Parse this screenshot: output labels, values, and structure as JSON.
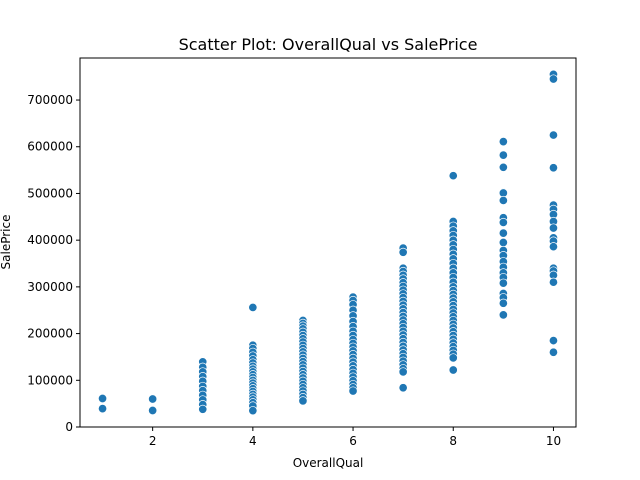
{
  "chart_data": {
    "type": "scatter",
    "title": "Scatter Plot: OverallQual vs SalePrice",
    "xlabel": "OverallQual",
    "ylabel": "SalePrice",
    "xlim": [
      0.55,
      10.45
    ],
    "ylim": [
      0,
      790000
    ],
    "x_ticks": [
      2,
      4,
      6,
      8,
      10
    ],
    "y_ticks": [
      0,
      100000,
      200000,
      300000,
      400000,
      500000,
      600000,
      700000
    ],
    "grid": false,
    "color": "#1f77b4",
    "points": [
      {
        "x": 1,
        "y": 61000
      },
      {
        "x": 1,
        "y": 39300
      },
      {
        "x": 2,
        "y": 60000
      },
      {
        "x": 2,
        "y": 35300
      },
      {
        "x": 3,
        "y": 139600
      },
      {
        "x": 3,
        "y": 128000
      },
      {
        "x": 3,
        "y": 118000
      },
      {
        "x": 3,
        "y": 108000
      },
      {
        "x": 3,
        "y": 98000
      },
      {
        "x": 3,
        "y": 87000
      },
      {
        "x": 3,
        "y": 78000
      },
      {
        "x": 3,
        "y": 68000
      },
      {
        "x": 3,
        "y": 58000
      },
      {
        "x": 3,
        "y": 48000
      },
      {
        "x": 3,
        "y": 37900
      },
      {
        "x": 4,
        "y": 256000
      },
      {
        "x": 4,
        "y": 175000
      },
      {
        "x": 4,
        "y": 168000
      },
      {
        "x": 4,
        "y": 160000
      },
      {
        "x": 4,
        "y": 152000
      },
      {
        "x": 4,
        "y": 144000
      },
      {
        "x": 4,
        "y": 137000
      },
      {
        "x": 4,
        "y": 130000
      },
      {
        "x": 4,
        "y": 124000
      },
      {
        "x": 4,
        "y": 118000
      },
      {
        "x": 4,
        "y": 112000
      },
      {
        "x": 4,
        "y": 106000
      },
      {
        "x": 4,
        "y": 100000
      },
      {
        "x": 4,
        "y": 94000
      },
      {
        "x": 4,
        "y": 88000
      },
      {
        "x": 4,
        "y": 82000
      },
      {
        "x": 4,
        "y": 76000
      },
      {
        "x": 4,
        "y": 70000
      },
      {
        "x": 4,
        "y": 64000
      },
      {
        "x": 4,
        "y": 58000
      },
      {
        "x": 4,
        "y": 52000
      },
      {
        "x": 4,
        "y": 45000
      },
      {
        "x": 4,
        "y": 35000
      },
      {
        "x": 5,
        "y": 228000
      },
      {
        "x": 5,
        "y": 222000
      },
      {
        "x": 5,
        "y": 216000
      },
      {
        "x": 5,
        "y": 210000
      },
      {
        "x": 5,
        "y": 203000
      },
      {
        "x": 5,
        "y": 196000
      },
      {
        "x": 5,
        "y": 189000
      },
      {
        "x": 5,
        "y": 182000
      },
      {
        "x": 5,
        "y": 175000
      },
      {
        "x": 5,
        "y": 168000
      },
      {
        "x": 5,
        "y": 161000
      },
      {
        "x": 5,
        "y": 154000
      },
      {
        "x": 5,
        "y": 147000
      },
      {
        "x": 5,
        "y": 140000
      },
      {
        "x": 5,
        "y": 133000
      },
      {
        "x": 5,
        "y": 126000
      },
      {
        "x": 5,
        "y": 119000
      },
      {
        "x": 5,
        "y": 112000
      },
      {
        "x": 5,
        "y": 105000
      },
      {
        "x": 5,
        "y": 98000
      },
      {
        "x": 5,
        "y": 91000
      },
      {
        "x": 5,
        "y": 84000
      },
      {
        "x": 5,
        "y": 77000
      },
      {
        "x": 5,
        "y": 70000
      },
      {
        "x": 5,
        "y": 63000
      },
      {
        "x": 5,
        "y": 56000
      },
      {
        "x": 6,
        "y": 278000
      },
      {
        "x": 6,
        "y": 271000
      },
      {
        "x": 6,
        "y": 262000
      },
      {
        "x": 6,
        "y": 250000
      },
      {
        "x": 6,
        "y": 238000
      },
      {
        "x": 6,
        "y": 226000
      },
      {
        "x": 6,
        "y": 215000
      },
      {
        "x": 6,
        "y": 205000
      },
      {
        "x": 6,
        "y": 196000
      },
      {
        "x": 6,
        "y": 187000
      },
      {
        "x": 6,
        "y": 179000
      },
      {
        "x": 6,
        "y": 171000
      },
      {
        "x": 6,
        "y": 163000
      },
      {
        "x": 6,
        "y": 155000
      },
      {
        "x": 6,
        "y": 147000
      },
      {
        "x": 6,
        "y": 139000
      },
      {
        "x": 6,
        "y": 131000
      },
      {
        "x": 6,
        "y": 123000
      },
      {
        "x": 6,
        "y": 115000
      },
      {
        "x": 6,
        "y": 107000
      },
      {
        "x": 6,
        "y": 99000
      },
      {
        "x": 6,
        "y": 91000
      },
      {
        "x": 6,
        "y": 84000
      },
      {
        "x": 6,
        "y": 77000
      },
      {
        "x": 7,
        "y": 383000
      },
      {
        "x": 7,
        "y": 374000
      },
      {
        "x": 7,
        "y": 340000
      },
      {
        "x": 7,
        "y": 333000
      },
      {
        "x": 7,
        "y": 325000
      },
      {
        "x": 7,
        "y": 317000
      },
      {
        "x": 7,
        "y": 309000
      },
      {
        "x": 7,
        "y": 301000
      },
      {
        "x": 7,
        "y": 293000
      },
      {
        "x": 7,
        "y": 285000
      },
      {
        "x": 7,
        "y": 277000
      },
      {
        "x": 7,
        "y": 269000
      },
      {
        "x": 7,
        "y": 261000
      },
      {
        "x": 7,
        "y": 253000
      },
      {
        "x": 7,
        "y": 245000
      },
      {
        "x": 7,
        "y": 237000
      },
      {
        "x": 7,
        "y": 229000
      },
      {
        "x": 7,
        "y": 221000
      },
      {
        "x": 7,
        "y": 213000
      },
      {
        "x": 7,
        "y": 205000
      },
      {
        "x": 7,
        "y": 197000
      },
      {
        "x": 7,
        "y": 189000
      },
      {
        "x": 7,
        "y": 181000
      },
      {
        "x": 7,
        "y": 173000
      },
      {
        "x": 7,
        "y": 165000
      },
      {
        "x": 7,
        "y": 157000
      },
      {
        "x": 7,
        "y": 149000
      },
      {
        "x": 7,
        "y": 141000
      },
      {
        "x": 7,
        "y": 133000
      },
      {
        "x": 7,
        "y": 125000
      },
      {
        "x": 7,
        "y": 118000
      },
      {
        "x": 7,
        "y": 84000
      },
      {
        "x": 8,
        "y": 538000
      },
      {
        "x": 8,
        "y": 440000
      },
      {
        "x": 8,
        "y": 430000
      },
      {
        "x": 8,
        "y": 420000
      },
      {
        "x": 8,
        "y": 410000
      },
      {
        "x": 8,
        "y": 400000
      },
      {
        "x": 8,
        "y": 390000
      },
      {
        "x": 8,
        "y": 380000
      },
      {
        "x": 8,
        "y": 370000
      },
      {
        "x": 8,
        "y": 360000
      },
      {
        "x": 8,
        "y": 350000
      },
      {
        "x": 8,
        "y": 340000
      },
      {
        "x": 8,
        "y": 330000
      },
      {
        "x": 8,
        "y": 320000
      },
      {
        "x": 8,
        "y": 310000
      },
      {
        "x": 8,
        "y": 300000
      },
      {
        "x": 8,
        "y": 292000
      },
      {
        "x": 8,
        "y": 284000
      },
      {
        "x": 8,
        "y": 276000
      },
      {
        "x": 8,
        "y": 268000
      },
      {
        "x": 8,
        "y": 260000
      },
      {
        "x": 8,
        "y": 252000
      },
      {
        "x": 8,
        "y": 244000
      },
      {
        "x": 8,
        "y": 236000
      },
      {
        "x": 8,
        "y": 228000
      },
      {
        "x": 8,
        "y": 220000
      },
      {
        "x": 8,
        "y": 212000
      },
      {
        "x": 8,
        "y": 204000
      },
      {
        "x": 8,
        "y": 196000
      },
      {
        "x": 8,
        "y": 188000
      },
      {
        "x": 8,
        "y": 180000
      },
      {
        "x": 8,
        "y": 172000
      },
      {
        "x": 8,
        "y": 164000
      },
      {
        "x": 8,
        "y": 156000
      },
      {
        "x": 8,
        "y": 148000
      },
      {
        "x": 8,
        "y": 122000
      },
      {
        "x": 9,
        "y": 611000
      },
      {
        "x": 9,
        "y": 582000
      },
      {
        "x": 9,
        "y": 556000
      },
      {
        "x": 9,
        "y": 501000
      },
      {
        "x": 9,
        "y": 485000
      },
      {
        "x": 9,
        "y": 448000
      },
      {
        "x": 9,
        "y": 438000
      },
      {
        "x": 9,
        "y": 415000
      },
      {
        "x": 9,
        "y": 395000
      },
      {
        "x": 9,
        "y": 378000
      },
      {
        "x": 9,
        "y": 367000
      },
      {
        "x": 9,
        "y": 354000
      },
      {
        "x": 9,
        "y": 342000
      },
      {
        "x": 9,
        "y": 330000
      },
      {
        "x": 9,
        "y": 320000
      },
      {
        "x": 9,
        "y": 308000
      },
      {
        "x": 9,
        "y": 286000
      },
      {
        "x": 9,
        "y": 277000
      },
      {
        "x": 9,
        "y": 265000
      },
      {
        "x": 9,
        "y": 240000
      },
      {
        "x": 10,
        "y": 755000
      },
      {
        "x": 10,
        "y": 745000
      },
      {
        "x": 10,
        "y": 625000
      },
      {
        "x": 10,
        "y": 555000
      },
      {
        "x": 10,
        "y": 475000
      },
      {
        "x": 10,
        "y": 466000
      },
      {
        "x": 10,
        "y": 455000
      },
      {
        "x": 10,
        "y": 440000
      },
      {
        "x": 10,
        "y": 426000
      },
      {
        "x": 10,
        "y": 405000
      },
      {
        "x": 10,
        "y": 398000
      },
      {
        "x": 10,
        "y": 386000
      },
      {
        "x": 10,
        "y": 340000
      },
      {
        "x": 10,
        "y": 334000
      },
      {
        "x": 10,
        "y": 325000
      },
      {
        "x": 10,
        "y": 310000
      },
      {
        "x": 10,
        "y": 185000
      },
      {
        "x": 10,
        "y": 160000
      }
    ]
  }
}
